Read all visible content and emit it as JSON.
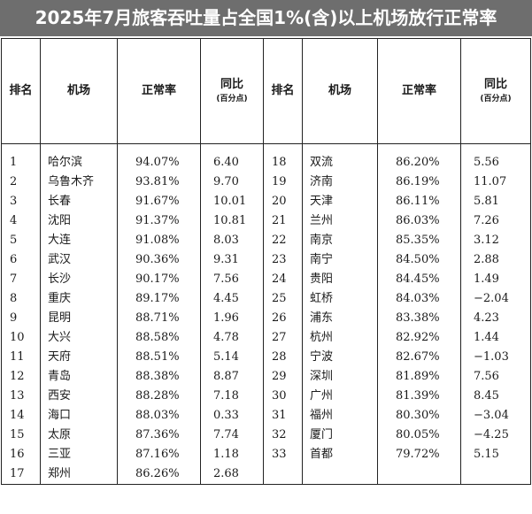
{
  "title": "2025年7月旅客吞吐量占全国1%(含)以上机场放行正常率",
  "headers": {
    "rank": "排名",
    "airport": "机场",
    "rate": "正常率",
    "yoy": "同比",
    "yoy_unit": "(百分点)"
  },
  "rows": [
    {
      "left": {
        "rank": "1",
        "airport": "哈尔滨",
        "rate": "94.07%",
        "yoy": "6.40"
      },
      "right": {
        "rank": "18",
        "airport": "双流",
        "rate": "86.20%",
        "yoy": "5.56"
      }
    },
    {
      "left": {
        "rank": "2",
        "airport": "乌鲁木齐",
        "rate": "93.81%",
        "yoy": "9.70"
      },
      "right": {
        "rank": "19",
        "airport": "济南",
        "rate": "86.19%",
        "yoy": "11.07"
      }
    },
    {
      "left": {
        "rank": "3",
        "airport": "长春",
        "rate": "91.67%",
        "yoy": "10.01"
      },
      "right": {
        "rank": "20",
        "airport": "天津",
        "rate": "86.11%",
        "yoy": "5.81"
      }
    },
    {
      "left": {
        "rank": "4",
        "airport": "沈阳",
        "rate": "91.37%",
        "yoy": "10.81"
      },
      "right": {
        "rank": "21",
        "airport": "兰州",
        "rate": "86.03%",
        "yoy": "7.26"
      }
    },
    {
      "left": {
        "rank": "5",
        "airport": "大连",
        "rate": "91.08%",
        "yoy": "8.03"
      },
      "right": {
        "rank": "22",
        "airport": "南京",
        "rate": "85.35%",
        "yoy": "3.12"
      }
    },
    {
      "left": {
        "rank": "6",
        "airport": "武汉",
        "rate": "90.36%",
        "yoy": "9.31"
      },
      "right": {
        "rank": "23",
        "airport": "南宁",
        "rate": "84.50%",
        "yoy": "2.88"
      }
    },
    {
      "left": {
        "rank": "7",
        "airport": "长沙",
        "rate": "90.17%",
        "yoy": "7.56"
      },
      "right": {
        "rank": "24",
        "airport": "贵阳",
        "rate": "84.45%",
        "yoy": "1.49"
      }
    },
    {
      "left": {
        "rank": "8",
        "airport": "重庆",
        "rate": "89.17%",
        "yoy": "4.45"
      },
      "right": {
        "rank": "25",
        "airport": "虹桥",
        "rate": "84.03%",
        "yoy": "−2.04"
      }
    },
    {
      "left": {
        "rank": "9",
        "airport": "昆明",
        "rate": "88.71%",
        "yoy": "1.96"
      },
      "right": {
        "rank": "26",
        "airport": "浦东",
        "rate": "83.38%",
        "yoy": "4.23"
      }
    },
    {
      "left": {
        "rank": "10",
        "airport": "大兴",
        "rate": "88.58%",
        "yoy": "4.78"
      },
      "right": {
        "rank": "27",
        "airport": "杭州",
        "rate": "82.92%",
        "yoy": "1.44"
      }
    },
    {
      "left": {
        "rank": "11",
        "airport": "天府",
        "rate": "88.51%",
        "yoy": "5.14"
      },
      "right": {
        "rank": "28",
        "airport": "宁波",
        "rate": "82.67%",
        "yoy": "−1.03"
      }
    },
    {
      "left": {
        "rank": "12",
        "airport": "青岛",
        "rate": "88.38%",
        "yoy": "8.87"
      },
      "right": {
        "rank": "29",
        "airport": "深圳",
        "rate": "81.89%",
        "yoy": "7.56"
      }
    },
    {
      "left": {
        "rank": "13",
        "airport": "西安",
        "rate": "88.28%",
        "yoy": "7.18"
      },
      "right": {
        "rank": "30",
        "airport": "广州",
        "rate": "81.39%",
        "yoy": "8.45"
      }
    },
    {
      "left": {
        "rank": "14",
        "airport": "海口",
        "rate": "88.03%",
        "yoy": "0.33"
      },
      "right": {
        "rank": "31",
        "airport": "福州",
        "rate": "80.30%",
        "yoy": "−3.04"
      }
    },
    {
      "left": {
        "rank": "15",
        "airport": "太原",
        "rate": "87.36%",
        "yoy": "7.74"
      },
      "right": {
        "rank": "32",
        "airport": "厦门",
        "rate": "80.05%",
        "yoy": "−4.25"
      }
    },
    {
      "left": {
        "rank": "16",
        "airport": "三亚",
        "rate": "87.16%",
        "yoy": "1.18"
      },
      "right": {
        "rank": "33",
        "airport": "首都",
        "rate": "79.72%",
        "yoy": "5.15"
      }
    },
    {
      "left": {
        "rank": "17",
        "airport": "郑州",
        "rate": "86.26%",
        "yoy": "2.68"
      },
      "right": {
        "rank": "",
        "airport": "",
        "rate": "",
        "yoy": ""
      }
    }
  ]
}
